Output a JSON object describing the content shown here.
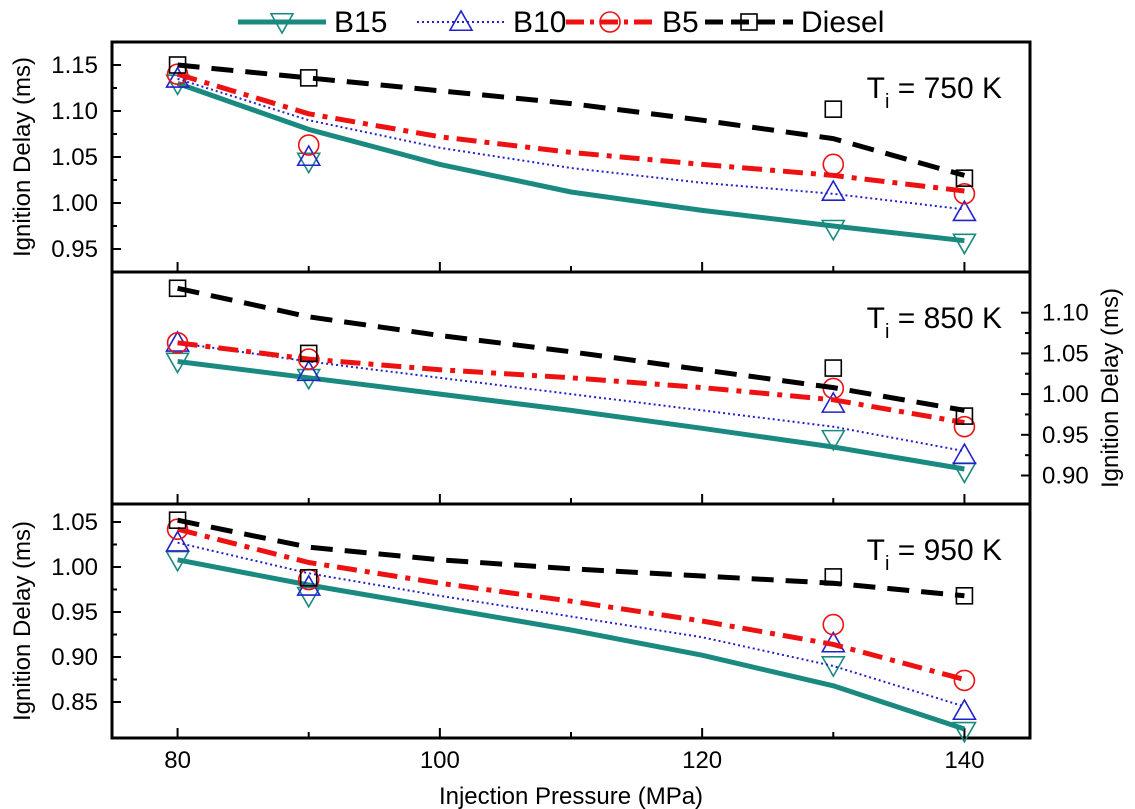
{
  "colors": {
    "B15": "#1a8a80",
    "B10": "#2222cc",
    "B5": "#ee1111",
    "Diesel": "#000000",
    "axis": "#000000"
  },
  "legend": {
    "position": "top",
    "entries": [
      {
        "name": "B15",
        "marker": "triangle-down",
        "line": "solid"
      },
      {
        "name": "B10",
        "marker": "triangle-up",
        "line": "dotted"
      },
      {
        "name": "B5",
        "marker": "circle",
        "line": "dash-dot"
      },
      {
        "name": "Diesel",
        "marker": "square",
        "line": "dashed"
      }
    ]
  },
  "chart_data": [
    {
      "type": "scatter",
      "annotation": {
        "main": "T",
        "sub": "i",
        "rest": " = 750 K"
      },
      "xlabel": "",
      "ylabel": "Ignition Delay (ms)",
      "y_axis_side": "left",
      "xlim": [
        75,
        145
      ],
      "ylim": [
        0.925,
        1.175
      ],
      "yticks": [
        0.95,
        1.0,
        1.05,
        1.1,
        1.15
      ],
      "ytick_labels": [
        "0.95",
        "1.00",
        "1.05",
        "1.10",
        "1.15"
      ],
      "x": [
        80,
        90,
        130,
        140
      ],
      "series": [
        {
          "name": "B15",
          "points": [
            1.13,
            1.045,
            0.972,
            0.957
          ],
          "fit": [
            [
              80,
              1.13
            ],
            [
              90,
              1.08
            ],
            [
              100,
              1.042
            ],
            [
              110,
              1.012
            ],
            [
              120,
              0.992
            ],
            [
              130,
              0.975
            ],
            [
              140,
              0.959
            ]
          ]
        },
        {
          "name": "B10",
          "points": [
            1.135,
            1.05,
            1.012,
            0.99
          ],
          "fit": [
            [
              80,
              1.135
            ],
            [
              90,
              1.09
            ],
            [
              100,
              1.06
            ],
            [
              110,
              1.038
            ],
            [
              120,
              1.022
            ],
            [
              130,
              1.01
            ],
            [
              140,
              0.993
            ]
          ]
        },
        {
          "name": "B5",
          "points": [
            1.14,
            1.063,
            1.042,
            1.01
          ],
          "fit": [
            [
              80,
              1.14
            ],
            [
              90,
              1.097
            ],
            [
              100,
              1.072
            ],
            [
              110,
              1.055
            ],
            [
              120,
              1.042
            ],
            [
              130,
              1.03
            ],
            [
              140,
              1.013
            ]
          ]
        },
        {
          "name": "Diesel",
          "points": [
            1.15,
            1.136,
            1.102,
            1.027
          ],
          "fit": [
            [
              80,
              1.15
            ],
            [
              90,
              1.136
            ],
            [
              100,
              1.122
            ],
            [
              110,
              1.108
            ],
            [
              120,
              1.09
            ],
            [
              130,
              1.07
            ],
            [
              140,
              1.03
            ]
          ]
        }
      ]
    },
    {
      "type": "scatter",
      "annotation": {
        "main": "T",
        "sub": "i",
        "rest": " = 850 K"
      },
      "xlabel": "",
      "ylabel": "Ignition Delay (ms)",
      "y_axis_side": "right",
      "xlim": [
        75,
        145
      ],
      "ylim": [
        0.865,
        1.15
      ],
      "yticks": [
        0.9,
        0.95,
        1.0,
        1.05,
        1.1
      ],
      "ytick_labels": [
        "0.90",
        "0.95",
        "1.00",
        "1.05",
        "1.10"
      ],
      "x": [
        80,
        90,
        130,
        140
      ],
      "series": [
        {
          "name": "B15",
          "points": [
            1.04,
            1.02,
            0.945,
            0.905
          ],
          "fit": [
            [
              80,
              1.04
            ],
            [
              90,
              1.02
            ],
            [
              100,
              1.0
            ],
            [
              110,
              0.98
            ],
            [
              120,
              0.958
            ],
            [
              130,
              0.935
            ],
            [
              140,
              0.908
            ]
          ]
        },
        {
          "name": "B10",
          "points": [
            1.063,
            1.027,
            0.988,
            0.925
          ],
          "fit": [
            [
              80,
              1.063
            ],
            [
              90,
              1.04
            ],
            [
              100,
              1.02
            ],
            [
              110,
              1.0
            ],
            [
              120,
              0.98
            ],
            [
              130,
              0.96
            ],
            [
              140,
              0.93
            ]
          ]
        },
        {
          "name": "B5",
          "points": [
            1.063,
            1.043,
            1.007,
            0.96
          ],
          "fit": [
            [
              80,
              1.063
            ],
            [
              90,
              1.043
            ],
            [
              100,
              1.03
            ],
            [
              110,
              1.02
            ],
            [
              120,
              1.008
            ],
            [
              130,
              0.993
            ],
            [
              140,
              0.965
            ]
          ]
        },
        {
          "name": "Diesel",
          "points": [
            1.13,
            1.05,
            1.032,
            0.973
          ],
          "fit": [
            [
              80,
              1.13
            ],
            [
              90,
              1.095
            ],
            [
              100,
              1.072
            ],
            [
              110,
              1.052
            ],
            [
              120,
              1.03
            ],
            [
              130,
              1.008
            ],
            [
              140,
              0.98
            ]
          ]
        }
      ]
    },
    {
      "type": "scatter",
      "annotation": {
        "main": "T",
        "sub": "i",
        "rest": " = 950 K"
      },
      "xlabel": "Injection Pressure (MPa)",
      "ylabel": "Ignition Delay (ms)",
      "y_axis_side": "left",
      "xlim": [
        75,
        145
      ],
      "ylim": [
        0.81,
        1.07
      ],
      "yticks": [
        0.85,
        0.9,
        0.95,
        1.0,
        1.05
      ],
      "ytick_labels": [
        "0.85",
        "0.90",
        "0.95",
        "1.00",
        "1.05"
      ],
      "xticks": [
        80,
        100,
        120,
        140
      ],
      "xtick_labels": [
        "80",
        "100",
        "120",
        "140"
      ],
      "x": [
        80,
        90,
        130,
        140
      ],
      "series": [
        {
          "name": "B15",
          "points": [
            1.008,
            0.968,
            0.891,
            0.818
          ],
          "fit": [
            [
              80,
              1.008
            ],
            [
              90,
              0.98
            ],
            [
              100,
              0.955
            ],
            [
              110,
              0.93
            ],
            [
              120,
              0.902
            ],
            [
              130,
              0.868
            ],
            [
              140,
              0.82
            ]
          ]
        },
        {
          "name": "B10",
          "points": [
            1.027,
            0.978,
            0.915,
            0.84
          ],
          "fit": [
            [
              80,
              1.027
            ],
            [
              90,
              0.993
            ],
            [
              100,
              0.968
            ],
            [
              110,
              0.945
            ],
            [
              120,
              0.922
            ],
            [
              130,
              0.89
            ],
            [
              140,
              0.845
            ]
          ]
        },
        {
          "name": "B5",
          "points": [
            1.042,
            0.986,
            0.936,
            0.874
          ],
          "fit": [
            [
              80,
              1.042
            ],
            [
              90,
              1.005
            ],
            [
              100,
              0.982
            ],
            [
              110,
              0.962
            ],
            [
              120,
              0.94
            ],
            [
              130,
              0.914
            ],
            [
              140,
              0.875
            ]
          ]
        },
        {
          "name": "Diesel",
          "points": [
            1.052,
            0.988,
            0.989,
            0.968
          ],
          "fit": [
            [
              80,
              1.052
            ],
            [
              90,
              1.022
            ],
            [
              100,
              1.008
            ],
            [
              110,
              0.998
            ],
            [
              120,
              0.99
            ],
            [
              130,
              0.982
            ],
            [
              140,
              0.968
            ]
          ]
        }
      ]
    }
  ]
}
